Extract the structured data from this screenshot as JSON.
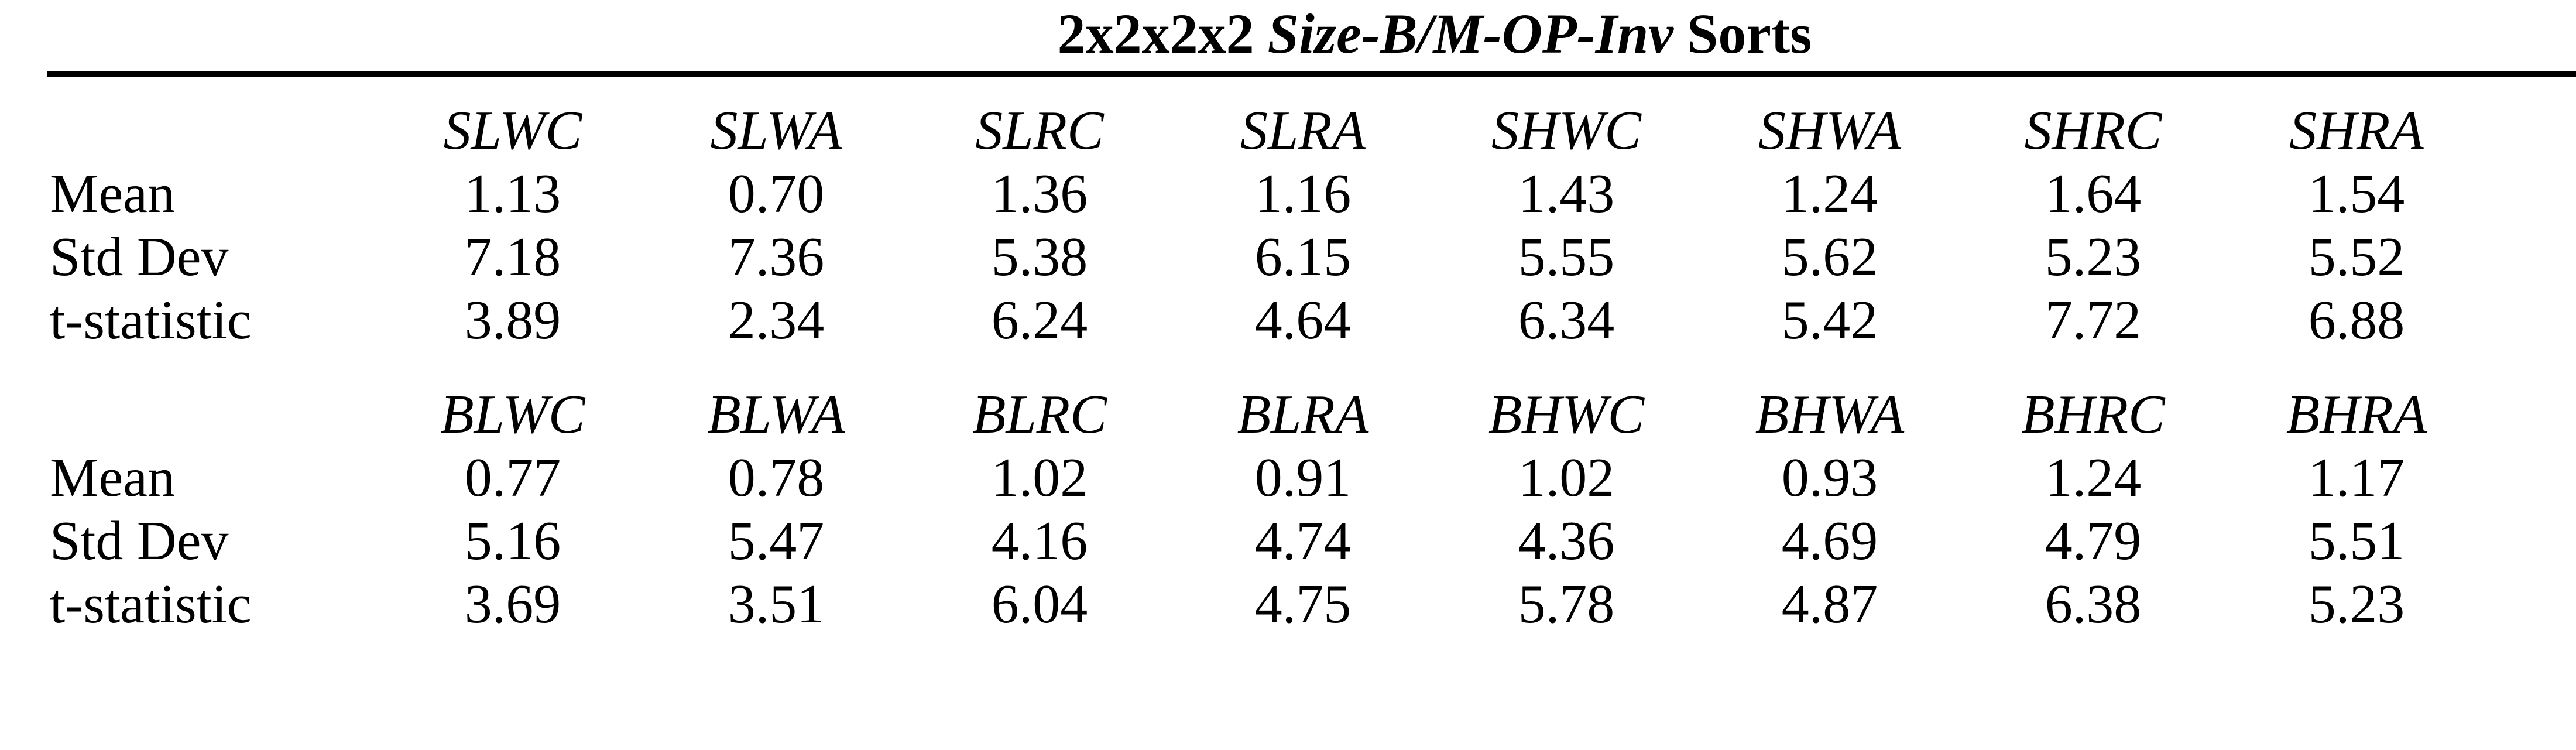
{
  "title": {
    "bold_prefix": "2x2x2x2",
    "bold_italic": "Size-B/M-OP-Inv",
    "bold_suffix": "Sorts"
  },
  "colors": {
    "text": "#000000",
    "background": "#ffffff",
    "rule": "#000000"
  },
  "panels": [
    {
      "columns": [
        "SLWC",
        "SLWA",
        "SLRC",
        "SLRA",
        "SHWC",
        "SHWA",
        "SHRC",
        "SHRA"
      ],
      "rows": [
        {
          "label": "Mean",
          "values": [
            "1.13",
            "0.70",
            "1.36",
            "1.16",
            "1.43",
            "1.24",
            "1.64",
            "1.54"
          ]
        },
        {
          "label": "Std Dev",
          "values": [
            "7.18",
            "7.36",
            "5.38",
            "6.15",
            "5.55",
            "5.62",
            "5.23",
            "5.52"
          ]
        },
        {
          "label": "t-statistic",
          "values": [
            "3.89",
            "2.34",
            "6.24",
            "4.64",
            "6.34",
            "5.42",
            "7.72",
            "6.88"
          ]
        }
      ]
    },
    {
      "columns": [
        "BLWC",
        "BLWA",
        "BLRC",
        "BLRA",
        "BHWC",
        "BHWA",
        "BHRC",
        "BHRA"
      ],
      "rows": [
        {
          "label": "Mean",
          "values": [
            "0.77",
            "0.78",
            "1.02",
            "0.91",
            "1.02",
            "0.93",
            "1.24",
            "1.17"
          ]
        },
        {
          "label": "Std Dev",
          "values": [
            "5.16",
            "5.47",
            "4.16",
            "4.74",
            "4.36",
            "4.69",
            "4.79",
            "5.51"
          ]
        },
        {
          "label": "t-statistic",
          "values": [
            "3.69",
            "3.51",
            "6.04",
            "4.75",
            "5.78",
            "4.87",
            "6.38",
            "5.23"
          ]
        }
      ]
    }
  ]
}
